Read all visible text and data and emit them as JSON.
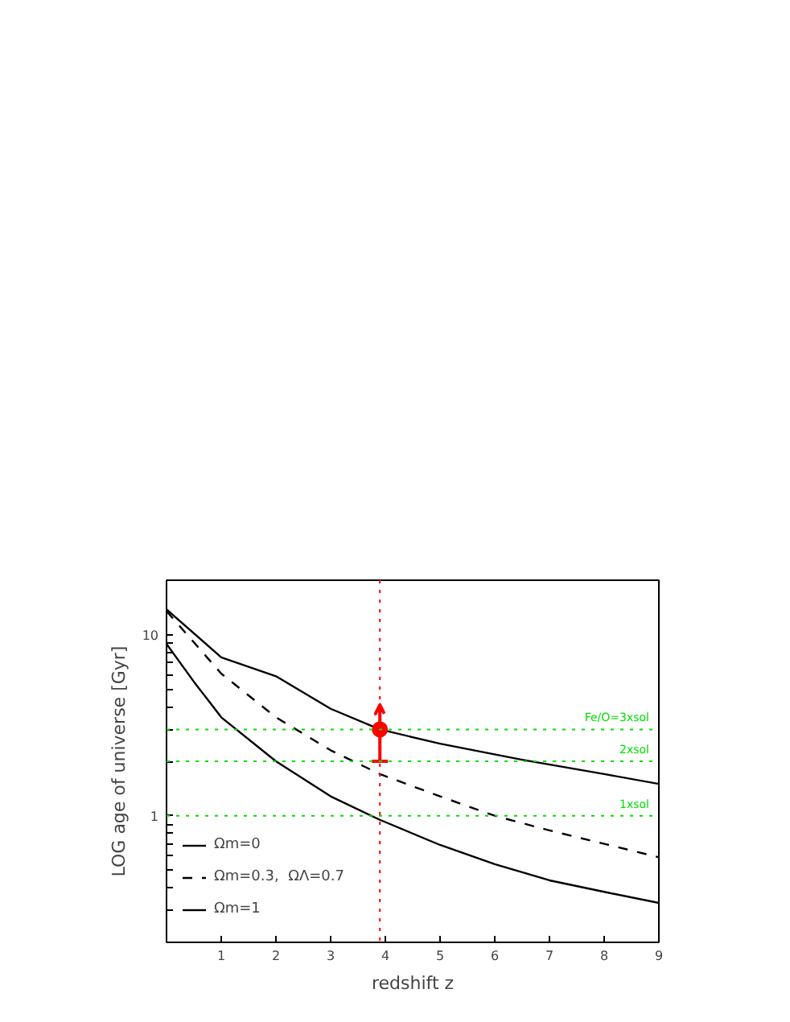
{
  "chart_data": {
    "type": "line",
    "xlabel": "redshift z",
    "ylabel": "LOG age of universe [Gyr]",
    "log": "y",
    "xlim": [
      0,
      9
    ],
    "ylim": [
      0.2,
      20
    ],
    "xticks": [
      1,
      2,
      3,
      4,
      5,
      6,
      7,
      8,
      9
    ],
    "yticks": [
      {
        "value": 0.3,
        "label": null
      },
      {
        "value": 0.4,
        "label": null
      },
      {
        "value": 0.5,
        "label": null
      },
      {
        "value": 0.6,
        "label": null
      },
      {
        "value": 0.7,
        "label": null
      },
      {
        "value": 0.8,
        "label": null
      },
      {
        "value": 0.9,
        "label": null
      },
      1,
      {
        "value": 2,
        "label": null
      },
      {
        "value": 3,
        "label": null
      },
      {
        "value": 4,
        "label": null
      },
      {
        "value": 5,
        "label": null
      },
      {
        "value": 6,
        "label": null
      },
      {
        "value": 7,
        "label": null
      },
      {
        "value": 8,
        "label": null
      },
      {
        "value": 9,
        "label": null
      },
      10
    ],
    "legend": "bottom left",
    "grid": false,
    "series": [
      {
        "name": "Ωm=0",
        "line_style": "solid",
        "color": "#000000",
        "x": [
          0,
          1,
          2,
          3,
          3.9,
          5,
          6.5,
          8,
          9
        ],
        "values": [
          13.8,
          7.5,
          5.9,
          3.9,
          3.0,
          2.5,
          2.04,
          1.7,
          1.5
        ]
      },
      {
        "name": "Ωm=0.3,  ΩΛ=0.7",
        "line_style": "dashed",
        "color": "#000000",
        "x": [
          0,
          1,
          2,
          3,
          3.9,
          5,
          6,
          7,
          8,
          9
        ],
        "values": [
          13.5,
          6.1,
          3.5,
          2.3,
          1.7,
          1.28,
          1.0,
          0.83,
          0.7,
          0.59
        ]
      },
      {
        "name": "Ωm=1",
        "line_style": "solid",
        "color": "#000000",
        "x": [
          0,
          0.5,
          1,
          2,
          3,
          3.9,
          5,
          6,
          7,
          8,
          9
        ],
        "values": [
          8.9,
          5.5,
          3.5,
          2.0,
          1.28,
          0.95,
          0.69,
          0.54,
          0.44,
          0.38,
          0.33
        ]
      },
      {
        "type": "scatter",
        "marker": "circle",
        "color": "#ff0000",
        "x": [
          3.9
        ],
        "values": [
          3.0
        ],
        "errors": [
          [
            2.0,
            4.1
          ]
        ]
      }
    ],
    "ref_lines": [
      {
        "axis": "x",
        "value": 3.9,
        "label": null,
        "color": "#ff0000",
        "line_style": "dotted"
      },
      {
        "axis": "y",
        "value": 3,
        "label": "Fe/O=3xsol",
        "color": "#00e000",
        "line_style": "dotted"
      },
      {
        "axis": "y",
        "value": 2,
        "label": "2xsol",
        "color": "#00e000",
        "line_style": "dotted"
      },
      {
        "axis": "y",
        "value": 1,
        "label": "1xsol",
        "color": "#00e000",
        "line_style": "dotted"
      }
    ]
  }
}
